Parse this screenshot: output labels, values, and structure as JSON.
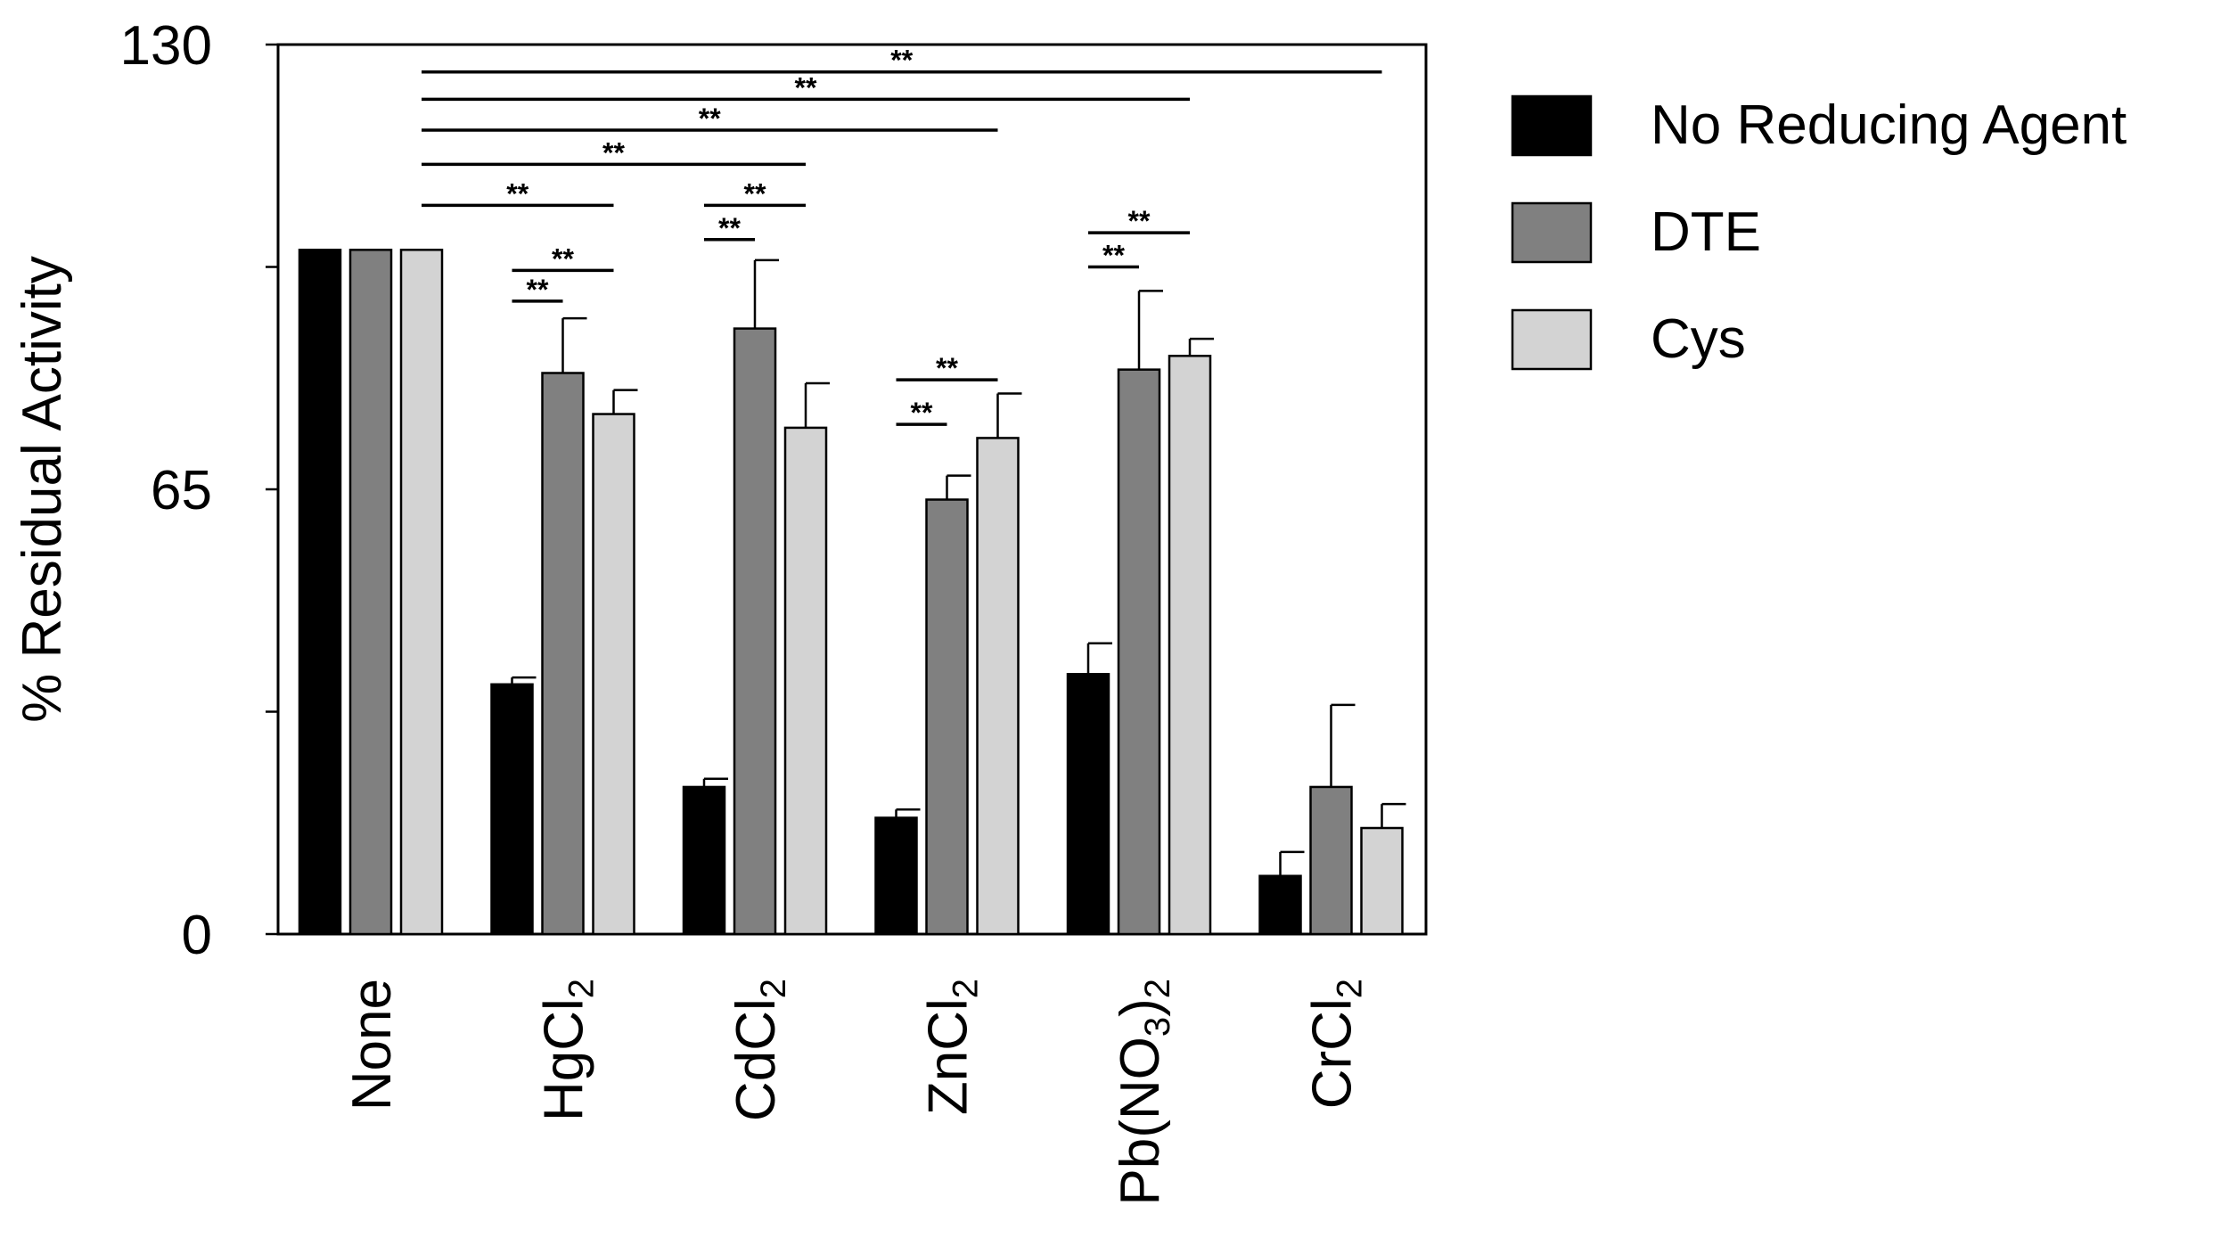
{
  "chart_data": {
    "type": "bar",
    "title": "",
    "xlabel": "",
    "ylabel": "% Residual Activity",
    "ylim": [
      0,
      130
    ],
    "yticks_labeled": [
      {
        "value": 0,
        "label": "0"
      },
      {
        "value": 65,
        "label": "65"
      },
      {
        "value": 130,
        "label": "130"
      }
    ],
    "yticks_minor": [
      32.5,
      97.5
    ],
    "categories": [
      {
        "name": "None",
        "base": "None",
        "sub": "",
        "tail": "",
        "tail_sub": ""
      },
      {
        "name": "HgCl2",
        "base": "HgCl",
        "sub": "2",
        "tail": "",
        "tail_sub": ""
      },
      {
        "name": "CdCl2",
        "base": "CdCl",
        "sub": "2",
        "tail": "",
        "tail_sub": ""
      },
      {
        "name": "ZnCl2",
        "base": "ZnCl",
        "sub": "2",
        "tail": "",
        "tail_sub": ""
      },
      {
        "name": "Pb(NO3)2",
        "base": "Pb(NO",
        "sub": "3",
        "tail": ")",
        "tail_sub": "2"
      },
      {
        "name": "CrCl2",
        "base": "CrCl",
        "sub": "2",
        "tail": "",
        "tail_sub": ""
      }
    ],
    "series": [
      {
        "name": "No Reducing Agent",
        "color": "#000000",
        "values": [
          100,
          36.5,
          21.5,
          17,
          38,
          8.5
        ],
        "errors": [
          0,
          1,
          1.2,
          1.2,
          4.5,
          3.5
        ]
      },
      {
        "name": "DTE",
        "color": "#808080",
        "values": [
          100,
          82,
          88.5,
          63.5,
          82.5,
          21.5
        ],
        "errors": [
          0,
          8,
          10,
          3.5,
          11.5,
          12
        ]
      },
      {
        "name": "Cys",
        "color": "#d3d3d3",
        "values": [
          100,
          76,
          74,
          72.5,
          84.5,
          15.5
        ],
        "errors": [
          0,
          3.5,
          6.5,
          6.5,
          2.5,
          3.5
        ]
      }
    ],
    "significance": [
      {
        "from": [
          0,
          2
        ],
        "to": [
          5,
          2
        ],
        "y": 126,
        "label": "**"
      },
      {
        "from": [
          0,
          2
        ],
        "to": [
          4,
          2
        ],
        "y": 122,
        "label": "**"
      },
      {
        "from": [
          0,
          2
        ],
        "to": [
          3,
          2
        ],
        "y": 117.5,
        "label": "**"
      },
      {
        "from": [
          0,
          2
        ],
        "to": [
          2,
          2
        ],
        "y": 112.5,
        "label": "**"
      },
      {
        "from": [
          0,
          2
        ],
        "to": [
          1,
          2
        ],
        "y": 106.5,
        "label": "**"
      },
      {
        "from": [
          1,
          0
        ],
        "to": [
          1,
          1
        ],
        "y": 92.5,
        "label": "**"
      },
      {
        "from": [
          1,
          0
        ],
        "to": [
          1,
          2
        ],
        "y": 97,
        "label": "**"
      },
      {
        "from": [
          2,
          0
        ],
        "to": [
          2,
          1
        ],
        "y": 101.5,
        "label": "**"
      },
      {
        "from": [
          2,
          0
        ],
        "to": [
          2,
          2
        ],
        "y": 106.5,
        "label": "**"
      },
      {
        "from": [
          3,
          0
        ],
        "to": [
          3,
          1
        ],
        "y": 74.5,
        "label": "**"
      },
      {
        "from": [
          3,
          0
        ],
        "to": [
          3,
          2
        ],
        "y": 81,
        "label": "**"
      },
      {
        "from": [
          4,
          0
        ],
        "to": [
          4,
          1
        ],
        "y": 97.5,
        "label": "**"
      },
      {
        "from": [
          4,
          0
        ],
        "to": [
          4,
          2
        ],
        "y": 102.5,
        "label": "**"
      }
    ],
    "legend_position": "right"
  }
}
